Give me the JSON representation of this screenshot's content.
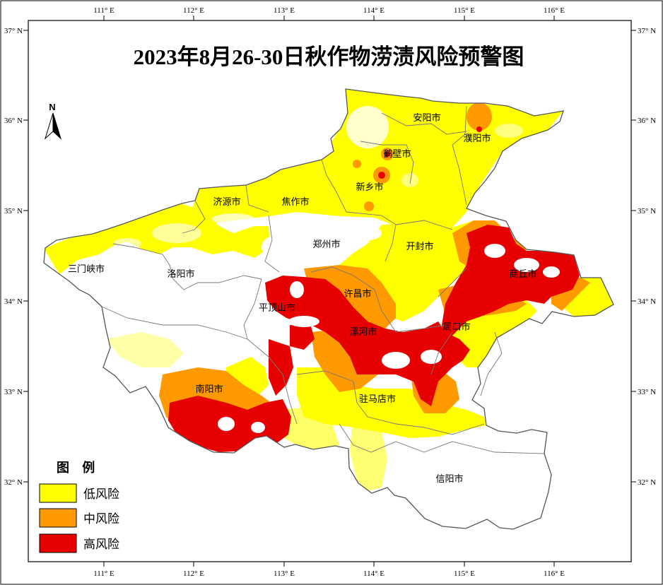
{
  "title": "2023年8月26-30日秋作物涝渍风险预警图",
  "north_label": "N",
  "longitude_ticks": [
    "111° E",
    "112° E",
    "113° E",
    "114° E",
    "115° E",
    "116° E"
  ],
  "latitude_ticks": [
    "37° N",
    "36° N",
    "35° N",
    "34° N",
    "33° N",
    "32° N"
  ],
  "cities": [
    {
      "name": "安阳市"
    },
    {
      "name": "濮阳市"
    },
    {
      "name": "鹤壁市"
    },
    {
      "name": "新乡市"
    },
    {
      "name": "济源市"
    },
    {
      "name": "焦作市"
    },
    {
      "name": "郑州市"
    },
    {
      "name": "开封市"
    },
    {
      "name": "三门峡市"
    },
    {
      "name": "洛阳市"
    },
    {
      "name": "商丘市"
    },
    {
      "name": "许昌市"
    },
    {
      "name": "平顶山市"
    },
    {
      "name": "漯河市"
    },
    {
      "name": "周口市"
    },
    {
      "name": "南阳市"
    },
    {
      "name": "驻马店市"
    },
    {
      "name": "信阳市"
    }
  ],
  "legend": {
    "title": "图 例",
    "items": [
      {
        "label": "低风险",
        "color": "#ffff00"
      },
      {
        "label": "中风险",
        "color": "#ff9900"
      },
      {
        "label": "高风险",
        "color": "#e60000"
      }
    ]
  }
}
